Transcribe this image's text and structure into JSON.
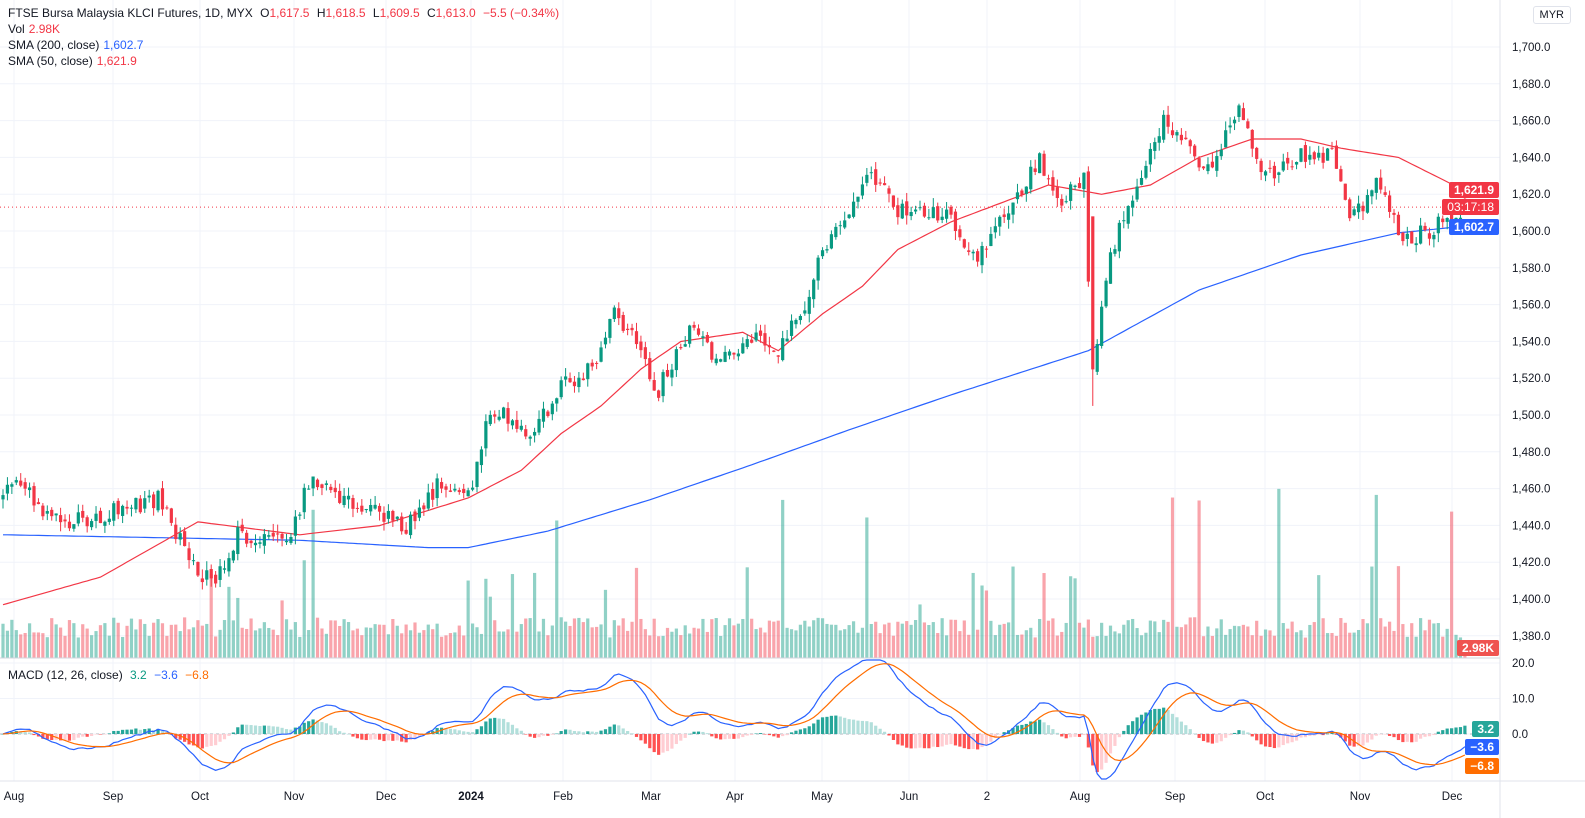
{
  "header": {
    "symbol": "FTSE Bursa Malaysia KLCI Futures, 1D, MYX",
    "o_label": "O",
    "o": "1,617.5",
    "h_label": "H",
    "h": "1,618.5",
    "l_label": "L",
    "l": "1,609.5",
    "c_label": "C",
    "c": "1,613.0",
    "change": "−5.5 (−0.34%)"
  },
  "vol": {
    "label": "Vol",
    "value": "2.98K"
  },
  "sma200": {
    "label": "SMA (200, close)",
    "value": "1,602.7"
  },
  "sma50": {
    "label": "SMA (50, close)",
    "value": "1,621.9"
  },
  "macd": {
    "label": "MACD (12, 26, close)",
    "hist": "3.2",
    "macd": "−3.6",
    "signal": "−6.8"
  },
  "currency": "MYR",
  "tags": {
    "sma50": "1,621.9",
    "countdown": "03:17:18",
    "sma200": "1,602.7",
    "volume": "2.98K",
    "hist": "3.2",
    "macd": "−3.6",
    "signal": "−6.8"
  },
  "colors": {
    "up": "#089981",
    "down": "#f23645",
    "sma200": "#2962ff",
    "sma50": "#f23645",
    "signal": "#ff6d00"
  },
  "chart_data": {
    "type": "candlestick",
    "bars": 331,
    "close_keypoints": [
      [
        0,
        1455
      ],
      [
        3,
        1465
      ],
      [
        13,
        1440
      ],
      [
        22,
        1445
      ],
      [
        35,
        1455
      ],
      [
        44,
        1415
      ],
      [
        48,
        1412
      ],
      [
        53,
        1435
      ],
      [
        65,
        1435
      ],
      [
        69,
        1465
      ],
      [
        81,
        1450
      ],
      [
        91,
        1440
      ],
      [
        99,
        1465
      ],
      [
        105,
        1455
      ],
      [
        110,
        1505
      ],
      [
        119,
        1490
      ],
      [
        126,
        1515
      ],
      [
        133,
        1525
      ],
      [
        138,
        1555
      ],
      [
        144,
        1540
      ],
      [
        147,
        1510
      ],
      [
        155,
        1545
      ],
      [
        162,
        1530
      ],
      [
        171,
        1545
      ],
      [
        175,
        1535
      ],
      [
        180,
        1555
      ],
      [
        187,
        1600
      ],
      [
        196,
        1630
      ],
      [
        202,
        1610
      ],
      [
        214,
        1610
      ],
      [
        219,
        1585
      ],
      [
        224,
        1600
      ],
      [
        234,
        1640
      ],
      [
        239,
        1615
      ],
      [
        244,
        1630
      ],
      [
        246,
        1520
      ],
      [
        250,
        1590
      ],
      [
        254,
        1610
      ],
      [
        262,
        1660
      ],
      [
        268,
        1650
      ],
      [
        271,
        1630
      ],
      [
        279,
        1665
      ],
      [
        285,
        1630
      ],
      [
        293,
        1640
      ],
      [
        300,
        1640
      ],
      [
        304,
        1605
      ],
      [
        310,
        1625
      ],
      [
        316,
        1595
      ],
      [
        322,
        1600
      ],
      [
        330,
        1613
      ]
    ],
    "sma200_keypoints": [
      [
        0,
        1435
      ],
      [
        67,
        1432
      ],
      [
        96,
        1428
      ],
      [
        105,
        1428
      ],
      [
        123,
        1437
      ],
      [
        146,
        1454
      ],
      [
        169,
        1473
      ],
      [
        191,
        1492
      ],
      [
        214,
        1511
      ],
      [
        245,
        1535
      ],
      [
        270,
        1568
      ],
      [
        293,
        1587
      ],
      [
        315,
        1599
      ],
      [
        330,
        1602.7
      ]
    ],
    "sma50_keypoints": [
      [
        0,
        1397
      ],
      [
        22,
        1412
      ],
      [
        44,
        1442
      ],
      [
        67,
        1435
      ],
      [
        85,
        1440
      ],
      [
        105,
        1455
      ],
      [
        117,
        1470
      ],
      [
        126,
        1490
      ],
      [
        135,
        1505
      ],
      [
        144,
        1525
      ],
      [
        153,
        1540
      ],
      [
        167,
        1545
      ],
      [
        175,
        1535
      ],
      [
        185,
        1555
      ],
      [
        194,
        1570
      ],
      [
        202,
        1590
      ],
      [
        214,
        1605
      ],
      [
        225,
        1615
      ],
      [
        236,
        1625
      ],
      [
        248,
        1620
      ],
      [
        259,
        1625
      ],
      [
        270,
        1640
      ],
      [
        282,
        1650
      ],
      [
        293,
        1650
      ],
      [
        302,
        1645
      ],
      [
        315,
        1640
      ],
      [
        330,
        1621.9
      ]
    ],
    "price_ticks": [
      "1,700.0",
      "1,680.0",
      "1,660.0",
      "1,640.0",
      "1,620.0",
      "1,600.0",
      "1,580.0",
      "1,560.0",
      "1,540.0",
      "1,520.0",
      "1,500.0",
      "1,480.0",
      "1,460.0",
      "1,440.0",
      "1,420.0",
      "1,400.0",
      "1,380.0"
    ],
    "macd_ticks": [
      "20.0",
      "10.0",
      "0.0"
    ],
    "time_labels": [
      "Aug",
      "Sep",
      "Oct",
      "Nov",
      "Dec",
      "2024",
      "Feb",
      "Mar",
      "Apr",
      "May",
      "Jun",
      "2",
      "Aug",
      "Sep",
      "Oct",
      "Nov",
      "Dec"
    ],
    "ylim": [
      1380,
      1700
    ]
  }
}
